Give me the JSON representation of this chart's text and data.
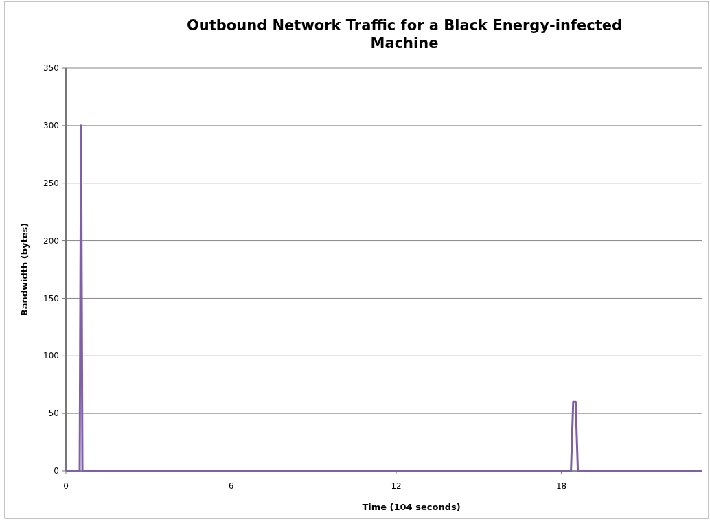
{
  "chart_data": {
    "type": "line",
    "title": "Outbound Network Traffic for a Black Energy-infected Machine",
    "xlabel": "Time (104 seconds)",
    "ylabel": "Bandwidth (bytes)",
    "x": [
      0,
      0.5,
      0.55,
      0.6,
      18.35,
      18.43,
      18.52,
      18.6,
      23.1
    ],
    "series": [
      {
        "color": "#7f60a8",
        "values": [
          0,
          0,
          300,
          0,
          0,
          60,
          60,
          0,
          0
        ]
      }
    ],
    "xlim": [
      0,
      23.1
    ],
    "xticks": [
      0,
      6,
      12,
      18
    ],
    "ylim": [
      0,
      350
    ],
    "yticks": [
      0,
      50,
      100,
      150,
      200,
      250,
      300,
      350
    ],
    "grid": "y",
    "marker": "none",
    "line_style": "solid"
  }
}
